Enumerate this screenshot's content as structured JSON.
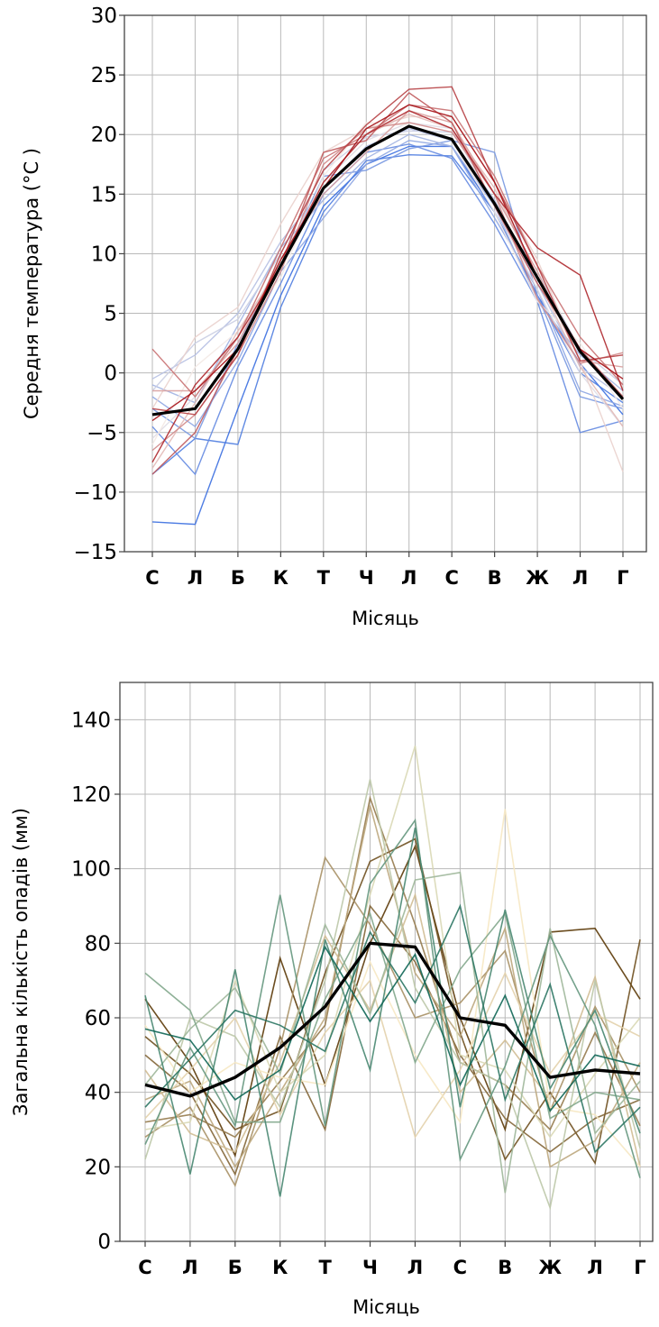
{
  "chart_data": [
    {
      "type": "line",
      "xlabel": "Місяць",
      "ylabel": "Середня температура (°C )",
      "categories": [
        "С",
        "Л",
        "Б",
        "К",
        "Т",
        "Ч",
        "Л",
        "С",
        "В",
        "Ж",
        "Л",
        "Г"
      ],
      "ylim": [
        -15,
        30
      ],
      "yticks": [
        "−15",
        "−10",
        "−5",
        "0",
        "5",
        "10",
        "15",
        "20",
        "25",
        "30"
      ],
      "grid": true,
      "legend": "none",
      "colormap": [
        "#3b6fe0",
        "#f3e9e4",
        "#a50f15"
      ],
      "mean_color": "#000000",
      "mean_values": [
        -3.5,
        -3.0,
        2.0,
        9.0,
        15.5,
        18.8,
        20.7,
        19.6,
        14.2,
        8.0,
        1.8,
        -2.2
      ],
      "series": [
        {
          "values": [
            -12.5,
            -12.7,
            -3.0,
            6.5,
            14.0,
            17.5,
            19.0,
            19.0,
            13.5,
            6.5,
            0.8,
            -3.5
          ]
        },
        {
          "values": [
            -8.5,
            -5.5,
            -6.0,
            5.5,
            13.5,
            17.8,
            18.3,
            18.2,
            13.5,
            6.5,
            0.0,
            -2.5
          ]
        },
        {
          "values": [
            -4.5,
            -8.5,
            0.5,
            7.5,
            15.0,
            18.5,
            19.2,
            18.0,
            12.5,
            6.0,
            -5.0,
            -4.0
          ]
        },
        {
          "values": [
            -3.0,
            -5.5,
            2.5,
            9.0,
            16.5,
            17.0,
            18.8,
            19.5,
            18.5,
            6.5,
            -2.0,
            -3.0
          ]
        },
        {
          "values": [
            -2.0,
            -4.5,
            1.0,
            8.5,
            13.0,
            17.5,
            19.5,
            19.0,
            13.0,
            7.0,
            -1.5,
            -2.8
          ]
        },
        {
          "values": [
            -1.0,
            -2.5,
            4.0,
            10.5,
            14.5,
            18.0,
            20.0,
            19.0,
            14.0,
            6.0,
            1.5,
            -1.5
          ]
        },
        {
          "values": [
            -0.5,
            1.5,
            5.0,
            11.0,
            15.5,
            19.0,
            20.5,
            19.5,
            14.5,
            7.5,
            0.5,
            -2.0
          ]
        },
        {
          "values": [
            -1.5,
            2.5,
            4.5,
            10.0,
            17.0,
            19.8,
            20.3,
            20.2,
            15.0,
            8.5,
            2.0,
            -1.0
          ]
        },
        {
          "values": [
            -5.5,
            -2.0,
            3.0,
            9.5,
            16.0,
            19.5,
            21.0,
            20.5,
            14.0,
            7.0,
            0.0,
            -4.5
          ]
        },
        {
          "values": [
            -6.0,
            0.5,
            3.5,
            8.0,
            16.5,
            21.0,
            20.8,
            19.5,
            13.5,
            6.0,
            2.5,
            -3.0
          ]
        },
        {
          "values": [
            -3.0,
            3.0,
            5.5,
            12.5,
            18.5,
            20.5,
            21.5,
            21.5,
            16.0,
            9.5,
            1.0,
            -8.3
          ]
        },
        {
          "values": [
            -8.0,
            -2.5,
            3.5,
            9.0,
            16.0,
            20.0,
            21.7,
            20.5,
            15.5,
            8.0,
            0.5,
            -4.5
          ]
        },
        {
          "values": [
            -1.5,
            -1.5,
            2.5,
            9.5,
            15.0,
            18.5,
            22.0,
            21.0,
            15.0,
            8.5,
            1.0,
            0.5
          ]
        },
        {
          "values": [
            -6.5,
            -3.5,
            1.5,
            8.5,
            17.5,
            20.5,
            21.0,
            20.2,
            15.0,
            6.2,
            0.8,
            1.7
          ]
        },
        {
          "values": [
            2.0,
            -2.0,
            3.0,
            10.5,
            18.0,
            20.0,
            22.5,
            22.0,
            16.5,
            9.0,
            3.0,
            -1.0
          ]
        },
        {
          "values": [
            -8.5,
            -5.0,
            2.0,
            9.0,
            18.5,
            19.5,
            23.5,
            21.0,
            14.0,
            7.5,
            2.0,
            -2.0
          ]
        },
        {
          "values": [
            -3.0,
            -3.5,
            1.5,
            10.0,
            17.0,
            20.8,
            23.8,
            24.0,
            16.0,
            9.0,
            1.0,
            1.5
          ]
        },
        {
          "values": [
            -7.5,
            -1.0,
            3.0,
            9.0,
            16.0,
            20.0,
            22.0,
            20.5,
            15.0,
            10.5,
            8.2,
            -1.5
          ]
        },
        {
          "values": [
            -4.0,
            -1.5,
            2.0,
            9.5,
            15.5,
            20.5,
            22.5,
            21.5,
            16.0,
            8.0,
            2.0,
            -0.5
          ]
        }
      ]
    },
    {
      "type": "line",
      "xlabel": "Місяць",
      "ylabel": "Загальна кількість опадів (мм)",
      "categories": [
        "С",
        "Л",
        "Б",
        "К",
        "Т",
        "Ч",
        "Л",
        "С",
        "В",
        "Ж",
        "Л",
        "Г"
      ],
      "ylim": [
        0,
        150
      ],
      "yticks": [
        "0",
        "20",
        "40",
        "60",
        "80",
        "100",
        "120",
        "140"
      ],
      "grid": true,
      "legend": "none",
      "colormap": [
        "#5c3a08",
        "#f6e8c3",
        "#0e6655"
      ],
      "mean_color": "#000000",
      "mean_values": [
        42,
        39,
        44,
        52,
        63,
        80,
        79,
        60,
        58,
        44,
        46,
        45
      ],
      "series": [
        {
          "values": [
            65,
            48,
            23,
            76,
            42,
            80,
            106,
            60,
            30,
            83,
            84,
            65
          ]
        },
        {
          "values": [
            55,
            45,
            30,
            35,
            72,
            102,
            108,
            56,
            22,
            40,
            21,
            81
          ]
        },
        {
          "values": [
            50,
            40,
            18,
            55,
            30,
            90,
            75,
            50,
            33,
            24,
            33,
            38
          ]
        },
        {
          "values": [
            32,
            34,
            28,
            43,
            58,
            119,
            85,
            48,
            42,
            30,
            56,
            31
          ]
        },
        {
          "values": [
            28,
            36,
            15,
            52,
            103,
            85,
            60,
            64,
            78,
            35,
            63,
            40
          ]
        },
        {
          "values": [
            38,
            43,
            20,
            40,
            60,
            117,
            72,
            55,
            84,
            20,
            27,
            48
          ]
        },
        {
          "values": [
            46,
            29,
            24,
            48,
            82,
            62,
            93,
            40,
            54,
            38,
            71,
            20
          ]
        },
        {
          "values": [
            33,
            46,
            60,
            34,
            56,
            70,
            28,
            46,
            72,
            45,
            61,
            55
          ]
        },
        {
          "values": [
            58,
            40,
            48,
            44,
            42,
            75,
            50,
            32,
            116,
            36,
            34,
            20
          ]
        },
        {
          "values": [
            30,
            32,
            70,
            40,
            50,
            93,
            133,
            50,
            46,
            28,
            45,
            60
          ]
        },
        {
          "values": [
            22,
            60,
            55,
            36,
            70,
            124,
            68,
            48,
            42,
            9,
            70,
            25
          ]
        },
        {
          "values": [
            42,
            57,
            68,
            45,
            85,
            61,
            97,
            99,
            13,
            84,
            29,
            43
          ]
        },
        {
          "values": [
            72,
            62,
            32,
            32,
            65,
            88,
            48,
            73,
            88,
            33,
            40,
            38
          ]
        },
        {
          "values": [
            26,
            52,
            31,
            93,
            31,
            96,
            113,
            22,
            47,
            82,
            58,
            17
          ]
        },
        {
          "values": [
            66,
            18,
            73,
            12,
            81,
            46,
            111,
            36,
            89,
            41,
            62,
            29
          ]
        },
        {
          "values": [
            36,
            49,
            62,
            58,
            51,
            83,
            64,
            90,
            38,
            69,
            24,
            36
          ]
        },
        {
          "values": [
            57,
            54,
            38,
            46,
            79,
            59,
            77,
            42,
            66,
            35,
            50,
            47
          ]
        }
      ]
    }
  ]
}
